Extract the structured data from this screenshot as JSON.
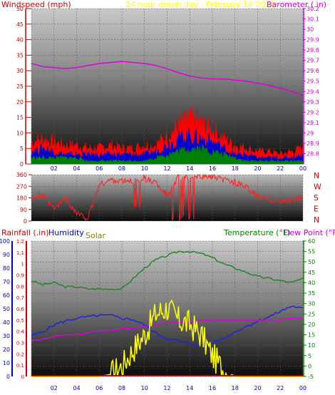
{
  "header": {
    "windspeed_label": "Windspeed (mph)",
    "title": "24 hour graph day : February 16 2026",
    "barometer_label": "Barometer (.in)"
  },
  "direction_letters": [
    "N",
    "W",
    "S",
    "E",
    "N"
  ],
  "bottom_labels": {
    "rainfall": "Rainfall (.in)",
    "humidity": "Humidity",
    "solar": "Solar",
    "temperature": "Temperature (°F)",
    "dewpoint": "Dew Point (°F)"
  },
  "colors": {
    "windspeed": "#cc0000",
    "title": "#ffff00",
    "barometer": "#cc00cc",
    "gust": "#ff0000",
    "avg_wind": "#0000cc",
    "low_wind": "#008000",
    "direction": "#ff2020",
    "rainfall": "#cc0000",
    "humidity": "#0000cc",
    "solar": "#808000",
    "temperature": "#008000",
    "dewpoint": "#cc00cc",
    "solar_line": "#ffff00",
    "temp_line": "#228822",
    "dew_line": "#dd00dd",
    "hum_line": "#2222dd"
  },
  "chart_data": [
    {
      "type": "area",
      "x_ticks": [
        "02",
        "04",
        "06",
        "08",
        "10",
        "12",
        "14",
        "16",
        "18",
        "20",
        "22",
        "00"
      ],
      "left_axis": {
        "label": "Windspeed (mph)",
        "ylim": [
          0,
          50
        ],
        "ticks": [
          0,
          5,
          10,
          15,
          20,
          25,
          30,
          35,
          40,
          45,
          50
        ]
      },
      "right_axis": {
        "label": "Barometer (.in)",
        "ylim": [
          28.7,
          30.2
        ],
        "ticks": [
          "28.8",
          "28.9",
          "29",
          "29.1",
          "29.2",
          "29.3",
          "29.4",
          "29.5",
          "29.6",
          "29.7",
          "29.8",
          "29.9",
          "30",
          "30.1",
          "30.2"
        ]
      },
      "x_hours": [
        0,
        1,
        2,
        3,
        4,
        5,
        6,
        7,
        8,
        9,
        10,
        11,
        12,
        13,
        14,
        15,
        16,
        17,
        18,
        19,
        20,
        21,
        22,
        23,
        24
      ],
      "series": [
        {
          "name": "Barometer",
          "axis": "right",
          "values": [
            29.67,
            29.64,
            29.63,
            29.62,
            29.63,
            29.65,
            29.67,
            29.68,
            29.69,
            29.68,
            29.67,
            29.65,
            29.62,
            29.58,
            29.55,
            29.53,
            29.52,
            29.52,
            29.51,
            29.5,
            29.48,
            29.46,
            29.43,
            29.4,
            29.36
          ]
        },
        {
          "name": "Gust",
          "axis": "left",
          "values": [
            7,
            8,
            7,
            6,
            6,
            5,
            5,
            6,
            5,
            5,
            6,
            6,
            9,
            12,
            14,
            13,
            11,
            8,
            6,
            5,
            4,
            4,
            3,
            4,
            5
          ]
        },
        {
          "name": "Average",
          "axis": "left",
          "values": [
            4,
            5,
            4,
            3,
            3,
            3,
            3,
            3,
            3,
            3,
            3,
            4,
            6,
            8,
            9,
            8,
            7,
            5,
            3,
            3,
            2,
            2,
            2,
            2,
            3
          ]
        },
        {
          "name": "Low",
          "axis": "left",
          "values": [
            2,
            2,
            2,
            2,
            2,
            1,
            1,
            1,
            1,
            1,
            1,
            2,
            3,
            4,
            5,
            5,
            4,
            3,
            2,
            1,
            1,
            1,
            1,
            1,
            1
          ]
        }
      ]
    },
    {
      "type": "line",
      "x_ticks": [],
      "ylim": [
        0,
        360
      ],
      "y_ticks": [
        0,
        90,
        180,
        270,
        360
      ],
      "x_hours": [
        0,
        1,
        2,
        3,
        4,
        5,
        6,
        7,
        8,
        9,
        10,
        11,
        12,
        13,
        14,
        15,
        16,
        17,
        18,
        19,
        20,
        21,
        22,
        23,
        24
      ],
      "series": [
        {
          "name": "Direction",
          "values": [
            180,
            200,
            90,
            180,
            60,
            20,
            280,
            320,
            310,
            310,
            330,
            300,
            200,
            340,
            340,
            350,
            340,
            320,
            300,
            260,
            190,
            170,
            150,
            160,
            180
          ]
        }
      ]
    },
    {
      "type": "line",
      "x_ticks": [
        "02",
        "04",
        "06",
        "08",
        "10",
        "12",
        "14",
        "16",
        "18",
        "20",
        "22",
        "00"
      ],
      "rainfall_axis": {
        "label": "Rainfall (.in)",
        "ylim": [
          0,
          1.2
        ],
        "ticks": [
          "0",
          "0.1",
          "0.2",
          "0.3",
          "0.4",
          "0.5",
          "0.6",
          "0.7",
          "0.8",
          "0.9",
          "1",
          "1.1",
          "1.2"
        ]
      },
      "humidity_axis": {
        "label": "Humidity",
        "ylim": [
          0,
          100
        ],
        "ticks": [
          0,
          10,
          20,
          30,
          40,
          50,
          60,
          70,
          80,
          90,
          100
        ]
      },
      "temperature_axis": {
        "label": "Temperature (°F)",
        "ylim": [
          -5,
          60
        ],
        "ticks": [
          -5,
          0,
          5,
          10,
          15,
          20,
          25,
          30,
          35,
          40,
          45,
          50,
          55,
          60
        ]
      },
      "x_hours": [
        0,
        1,
        2,
        3,
        4,
        5,
        6,
        7,
        8,
        9,
        10,
        11,
        12,
        13,
        14,
        15,
        16,
        17,
        18,
        19,
        20,
        21,
        22,
        23,
        24
      ],
      "series": [
        {
          "name": "Temperature",
          "axis": "temperature",
          "values": [
            41,
            39,
            40,
            38,
            38,
            37,
            37,
            37,
            37,
            42,
            47,
            51,
            53,
            55,
            55,
            54,
            52,
            49,
            47,
            45,
            43,
            42,
            41,
            40,
            42
          ]
        },
        {
          "name": "Humidity",
          "axis": "humidity",
          "values": [
            30,
            33,
            38,
            41,
            43,
            44,
            45,
            45,
            43,
            42,
            38,
            32,
            28,
            26,
            24,
            23,
            25,
            28,
            33,
            37,
            41,
            44,
            48,
            52,
            50
          ]
        },
        {
          "name": "Dew Point",
          "axis": "temperature",
          "values": [
            12,
            13,
            14,
            15,
            15,
            16,
            17,
            17,
            18,
            18,
            19,
            20,
            21,
            21,
            21,
            22,
            22,
            22,
            22,
            22,
            22,
            22,
            22,
            23,
            23
          ]
        },
        {
          "name": "Solar",
          "axis": "temperature",
          "values": [
            -5,
            -5,
            -5,
            -5,
            -5,
            -5,
            -5,
            -4,
            0,
            8,
            15,
            25,
            28,
            22,
            20,
            15,
            5,
            -2,
            -5,
            -5,
            -5,
            -5,
            -5,
            -5,
            -5
          ]
        },
        {
          "name": "Rainfall",
          "axis": "rainfall",
          "values": [
            0,
            0,
            0,
            0,
            0,
            0,
            0,
            0,
            0,
            0,
            0,
            0,
            0,
            0,
            0,
            0,
            0,
            0,
            0,
            0,
            0,
            0,
            0,
            0,
            0
          ]
        }
      ]
    }
  ]
}
